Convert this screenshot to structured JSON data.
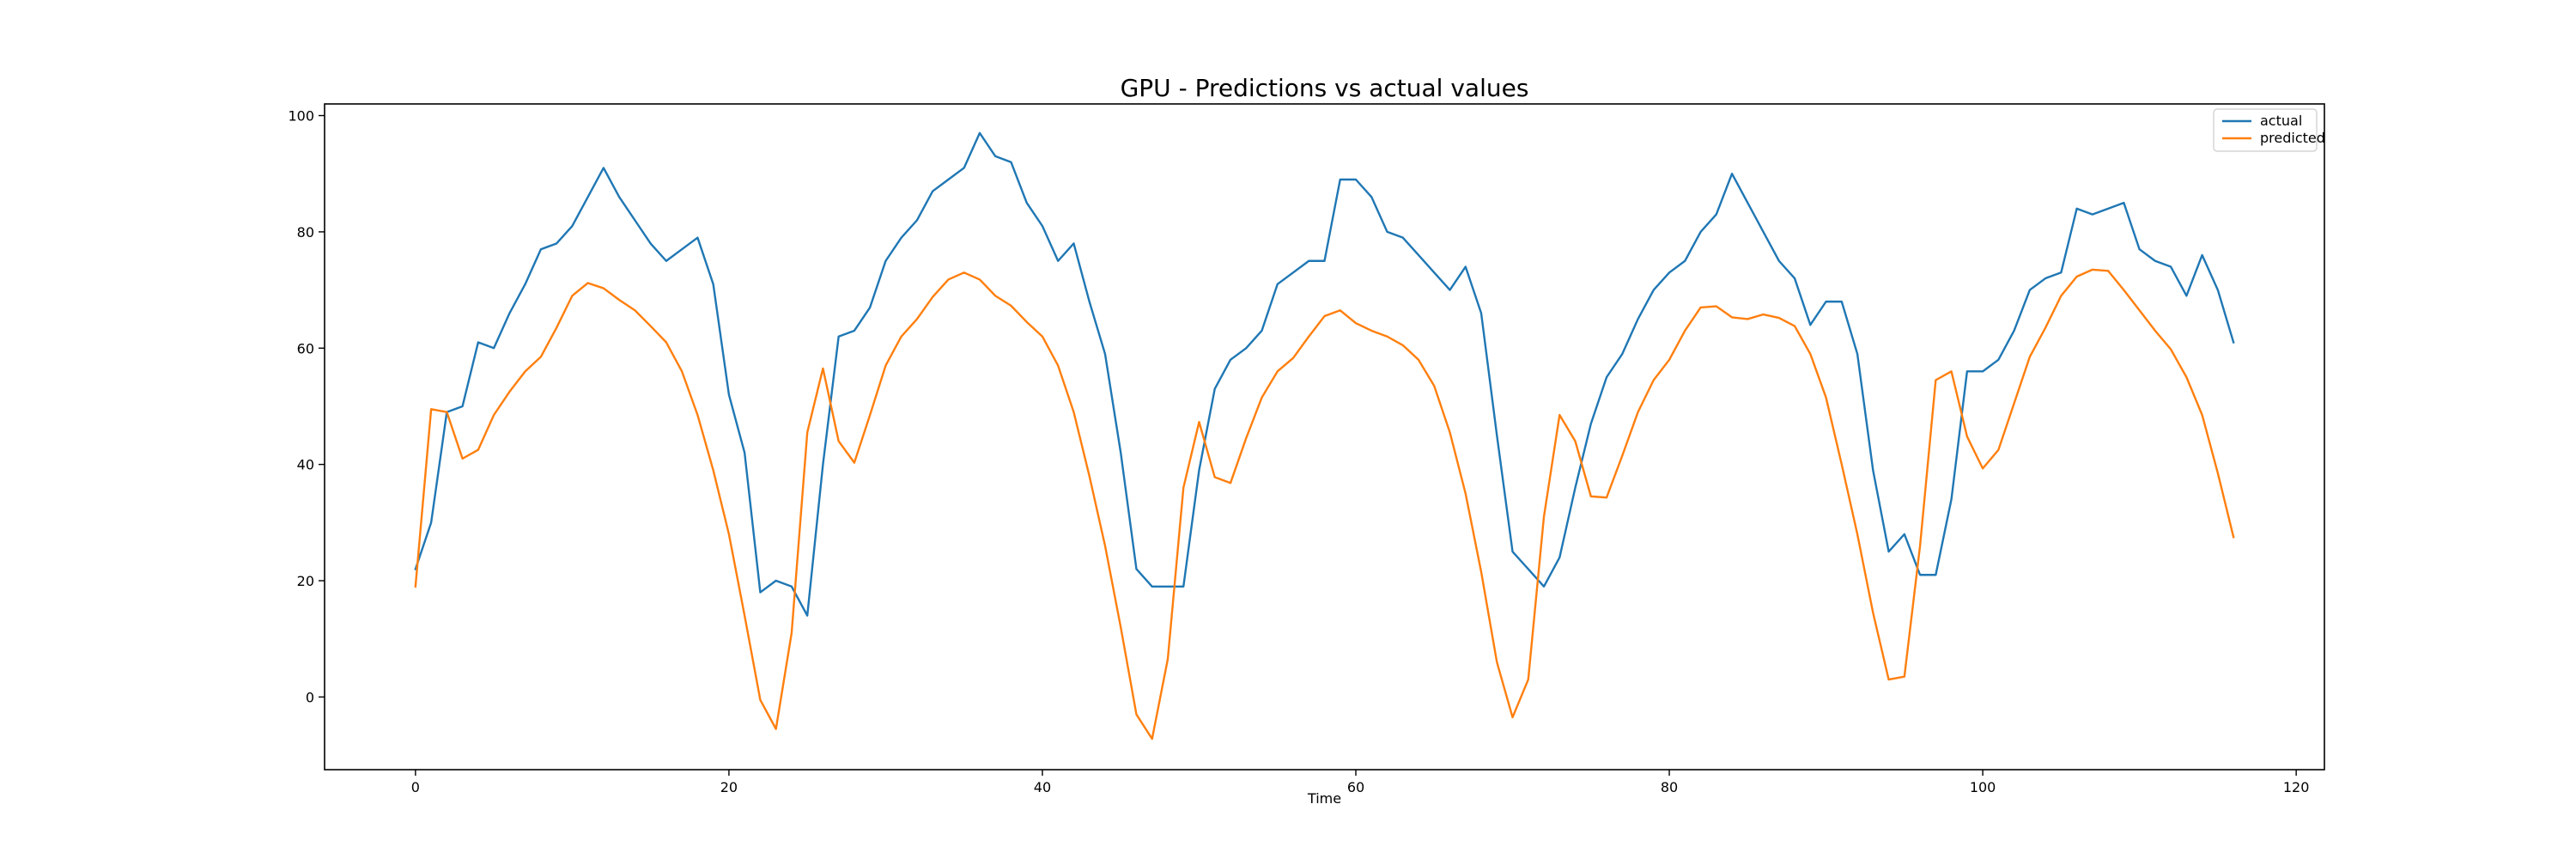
{
  "chart_data": {
    "type": "line",
    "title": "GPU - Predictions vs actual values",
    "xlabel": "Time",
    "ylabel": "",
    "xlim": [
      -5.8,
      121.8
    ],
    "ylim": [
      -12.5,
      102
    ],
    "xticks": [
      0,
      20,
      40,
      60,
      80,
      100,
      120
    ],
    "yticks": [
      0,
      20,
      40,
      60,
      80,
      100
    ],
    "grid": false,
    "legend_position": "top-right",
    "x": [
      0,
      1,
      2,
      3,
      4,
      5,
      6,
      7,
      8,
      9,
      10,
      11,
      12,
      13,
      14,
      15,
      16,
      17,
      18,
      19,
      20,
      21,
      22,
      23,
      24,
      25,
      26,
      27,
      28,
      29,
      30,
      31,
      32,
      33,
      34,
      35,
      36,
      37,
      38,
      39,
      40,
      41,
      42,
      43,
      44,
      45,
      46,
      47,
      48,
      49,
      50,
      51,
      52,
      53,
      54,
      55,
      56,
      57,
      58,
      59,
      60,
      61,
      62,
      63,
      64,
      65,
      66,
      67,
      68,
      69,
      70,
      71,
      72,
      73,
      74,
      75,
      76,
      77,
      78,
      79,
      80,
      81,
      82,
      83,
      84,
      85,
      86,
      87,
      88,
      89,
      90,
      91,
      92,
      93,
      94,
      95,
      96,
      97,
      98,
      99,
      100,
      101,
      102,
      103,
      104,
      105,
      106,
      107,
      108,
      109,
      110,
      111,
      112,
      113,
      114,
      115,
      116
    ],
    "series": [
      {
        "name": "actual",
        "color": "#1f77b4",
        "values": [
          22,
          30,
          49,
          50,
          61,
          60,
          66,
          71,
          77,
          78,
          81,
          86,
          91,
          86,
          82,
          78,
          75,
          77,
          79,
          71,
          52,
          42,
          18,
          20,
          19,
          14,
          40,
          62,
          63,
          67,
          75,
          79,
          82,
          87,
          89,
          91,
          97,
          93,
          92,
          85,
          81,
          75,
          78,
          68,
          59,
          42,
          22,
          19,
          19,
          19,
          39,
          53,
          58,
          60,
          63,
          71,
          73,
          75,
          75,
          89,
          89,
          86,
          80,
          79,
          76,
          73,
          70,
          74,
          66,
          45,
          25,
          22,
          19,
          24,
          36,
          47,
          55,
          59,
          65,
          70,
          73,
          75,
          80,
          83,
          90,
          85,
          80,
          75,
          72,
          64,
          68,
          68,
          59,
          39,
          25,
          28,
          21,
          21,
          34,
          56,
          56,
          58,
          63,
          70,
          72,
          73,
          84,
          83,
          84,
          85,
          77,
          75,
          74,
          69,
          76,
          70,
          61
        ]
      },
      {
        "name": "predicted",
        "color": "#ff7f0e",
        "values": [
          19,
          49.5,
          49,
          41,
          42.5,
          48.5,
          52.5,
          56,
          58.5,
          63.5,
          69,
          71.2,
          70.3,
          68.3,
          66.5,
          63.8,
          61,
          56,
          48.5,
          39,
          28,
          14,
          -0.5,
          -5.5,
          11,
          45.5,
          56.5,
          44,
          40.3,
          48.5,
          57,
          62,
          65,
          68.8,
          71.8,
          73,
          71.8,
          69,
          67.3,
          64.5,
          62,
          57,
          49,
          38,
          26,
          12,
          -3,
          -7.2,
          6.5,
          36,
          47.3,
          37.8,
          36.8,
          44.5,
          51.5,
          56,
          58.3,
          62,
          65.5,
          66.5,
          64.3,
          63,
          62,
          60.5,
          58,
          53.5,
          45.5,
          35,
          21.5,
          6,
          -3.5,
          3,
          31,
          48.5,
          44,
          34.5,
          34.3,
          41.5,
          49,
          54.5,
          58,
          63,
          67,
          67.2,
          65.3,
          65,
          65.8,
          65.2,
          63.8,
          59,
          51.5,
          40,
          28,
          14.5,
          3,
          3.5,
          26,
          54.5,
          56,
          44.8,
          39.3,
          42.5,
          50.5,
          58.5,
          63.5,
          69,
          72.3,
          73.5,
          73.3,
          70,
          66.5,
          63,
          59.8,
          55,
          48.5,
          38.5,
          27.5
        ]
      }
    ]
  }
}
